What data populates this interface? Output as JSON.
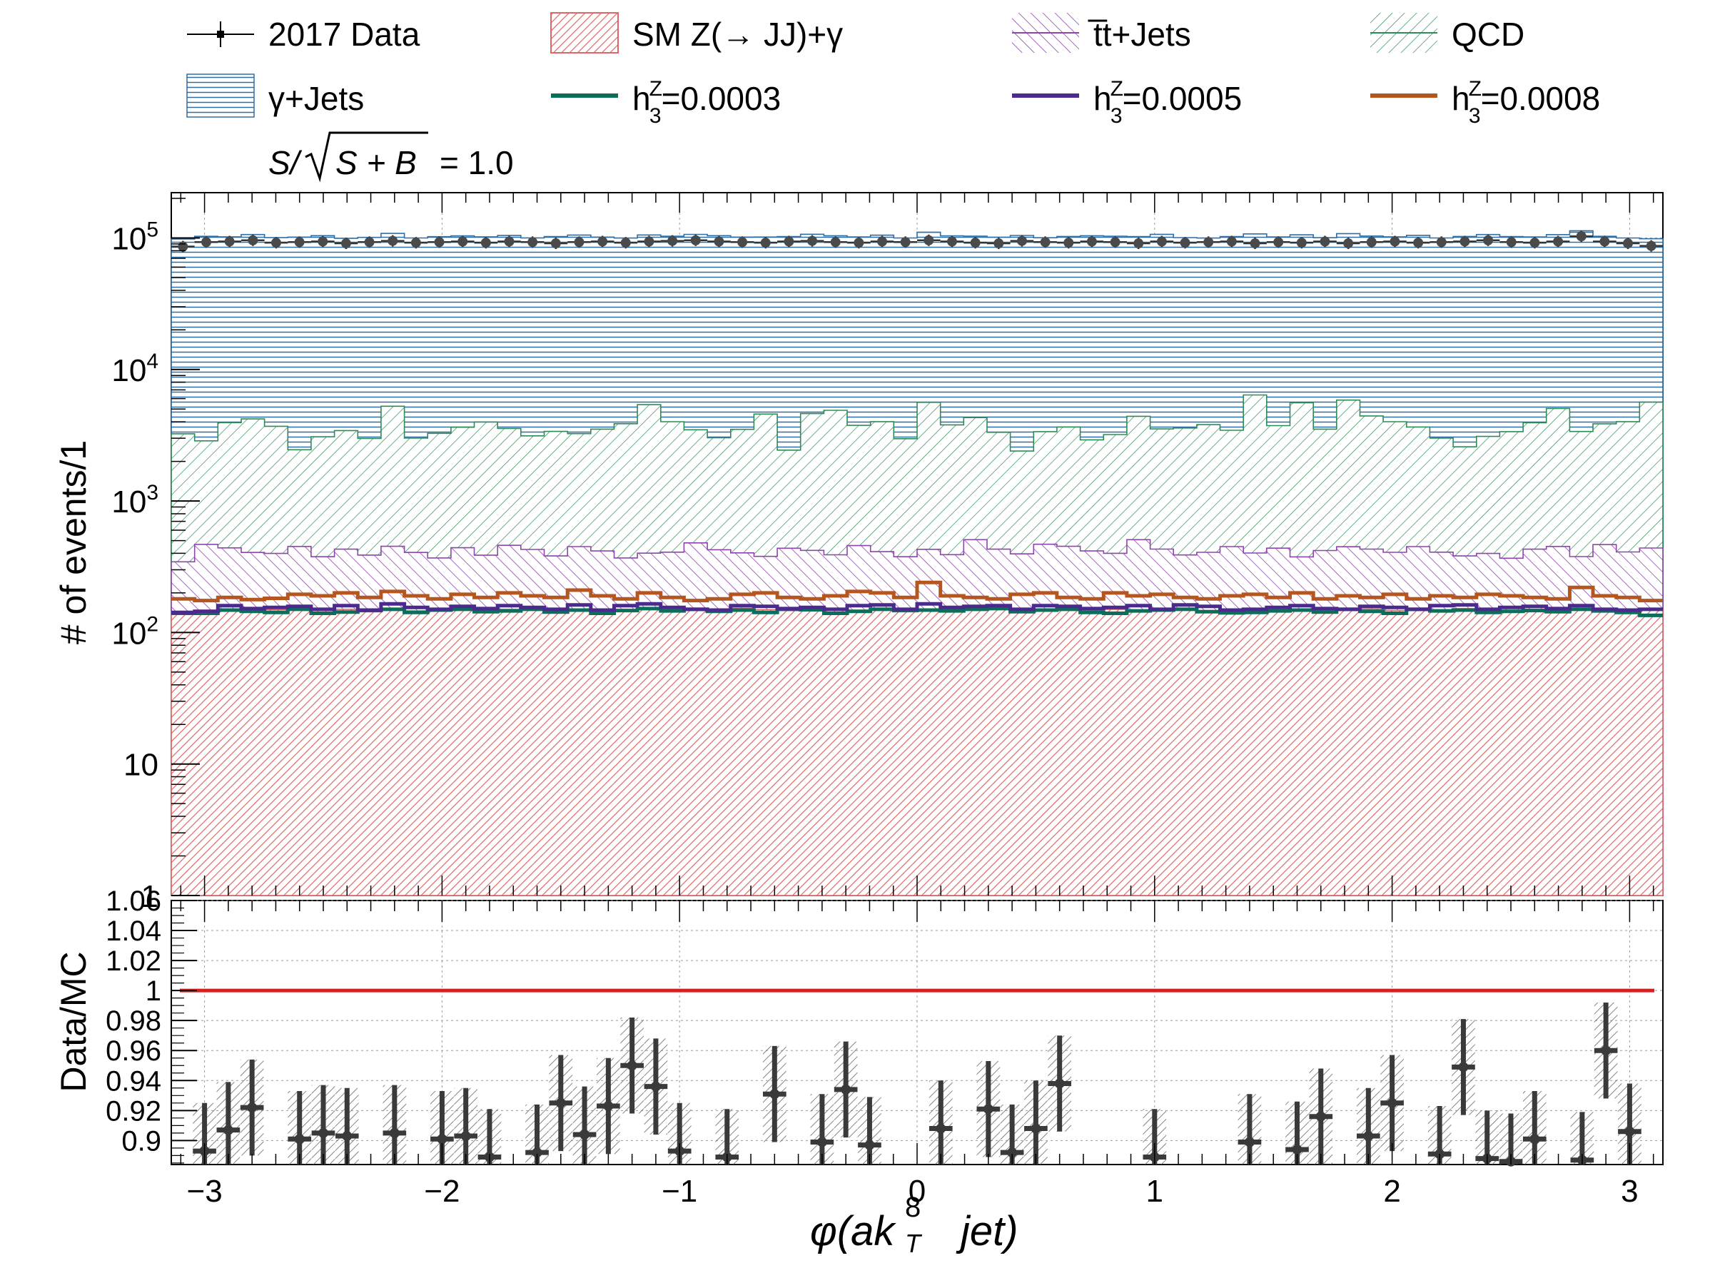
{
  "legend": {
    "entries": [
      {
        "label": "2017 Data",
        "kind": "data"
      },
      {
        "label": "SM Z(→ JJ)+γ",
        "kind": "fill",
        "color": "#e06666"
      },
      {
        "label": "t̅t+Jets",
        "kind": "fill",
        "color": "#8e44ad"
      },
      {
        "label": "QCD",
        "kind": "fill",
        "color": "#2e8b57"
      },
      {
        "label": "γ+Jets",
        "kind": "fill",
        "color": "#2f6ea5"
      },
      {
        "label": "h=0.0003",
        "kind": "line",
        "color": "#0b6e5a",
        "main": "h",
        "sup": "Z",
        "sub": "3",
        "value": "=0.0003"
      },
      {
        "label": "h=0.0005",
        "kind": "line",
        "color": "#4b2a8e",
        "main": "h",
        "sup": "Z",
        "sub": "3",
        "value": "=0.0005"
      },
      {
        "label": "h=0.0008",
        "kind": "line",
        "color": "#b5561f",
        "main": "h",
        "sup": "Z",
        "sub": "3",
        "value": "=0.0008"
      }
    ],
    "significance": "S/√S + B = 1.0",
    "significance_value": "= 1.0"
  },
  "chart_data": [
    {
      "type": "line",
      "panel": "main",
      "ylabel": "# of events/1",
      "yscale": "log",
      "ylim": [
        1,
        200000
      ],
      "xlim": [
        -3.14,
        3.14
      ],
      "y_tick_labels": [
        "1",
        "10",
        "10^2",
        "10^3",
        "10^4",
        "10^5"
      ],
      "n_bins": 64,
      "series": [
        {
          "name": "SM Z(→ JJ)+γ",
          "color": "#e06666",
          "values": [
            145,
            148,
            150,
            146,
            149,
            151,
            147,
            150,
            148,
            152,
            146,
            149,
            151,
            147,
            150,
            148,
            152,
            150,
            147,
            149,
            151,
            148,
            150,
            146,
            153,
            149,
            147,
            151,
            150,
            148,
            152,
            147,
            149,
            151,
            148,
            150,
            146,
            149,
            152,
            147,
            150,
            148,
            151,
            149,
            147,
            150,
            152,
            148,
            146,
            150,
            149,
            151,
            147,
            150,
            148,
            152,
            149,
            147,
            150,
            151,
            148,
            146,
            150,
            149
          ]
        },
        {
          "name": "t̅t+Jets",
          "color": "#8e44ad",
          "values": [
            200,
            320,
            290,
            260,
            250,
            300,
            230,
            280,
            240,
            300,
            260,
            220,
            290,
            240,
            310,
            280,
            230,
            300,
            270,
            220,
            250,
            260,
            330,
            280,
            250,
            230,
            290,
            270,
            240,
            310,
            260,
            230,
            280,
            240,
            360,
            280,
            250,
            320,
            300,
            270,
            250,
            360,
            280,
            240,
            260,
            300,
            250,
            290,
            230,
            270,
            300,
            280,
            260,
            300,
            260,
            230,
            250,
            220,
            280,
            300,
            230,
            320,
            260,
            290
          ]
        },
        {
          "name": "QCD",
          "color": "#2e8b57",
          "values": [
            2900,
            2400,
            3500,
            3800,
            3300,
            2000,
            2700,
            3000,
            2600,
            4800,
            2600,
            2900,
            3200,
            3600,
            3100,
            2700,
            3000,
            2800,
            3100,
            3500,
            5000,
            3600,
            3000,
            2600,
            3100,
            4200,
            2000,
            4200,
            4500,
            3300,
            3600,
            2600,
            5200,
            3400,
            3800,
            2900,
            2000,
            2900,
            3200,
            2500,
            2800,
            3900,
            3100,
            3200,
            3400,
            3000,
            6000,
            3300,
            5200,
            3100,
            5400,
            4000,
            3600,
            3200,
            2600,
            2200,
            2700,
            3000,
            3500,
            4600,
            3000,
            3400,
            3600,
            5200
          ]
        },
        {
          "name": "γ+Jets",
          "color": "#2f6ea5",
          "values": [
            95000,
            100000,
            98000,
            102000,
            97000,
            99000,
            101000,
            96000,
            98000,
            103000,
            97000,
            99000,
            100000,
            98000,
            101000,
            97000,
            99000,
            102000,
            98000,
            96000,
            100000,
            99000,
            103000,
            101000,
            98000,
            97000,
            100000,
            102000,
            99000,
            98000,
            101000,
            97000,
            105000,
            100000,
            99000,
            98000,
            102000,
            97000,
            99000,
            101000,
            100000,
            98000,
            103000,
            97000,
            96000,
            99000,
            101000,
            98000,
            100000,
            97000,
            102000,
            99000,
            98000,
            101000,
            97000,
            100000,
            103000,
            99000,
            98000,
            101000,
            110000,
            99000,
            96000,
            93000
          ]
        },
        {
          "name": "2017 Data",
          "color": "#444444",
          "values": [
            86000,
            93000,
            94000,
            96000,
            92000,
            93000,
            94000,
            91000,
            93000,
            95000,
            92000,
            93000,
            94000,
            92000,
            94000,
            93000,
            91000,
            93000,
            94000,
            92000,
            94000,
            95000,
            96000,
            94000,
            93000,
            92000,
            94000,
            95000,
            93000,
            92000,
            94000,
            93000,
            96000,
            94000,
            92000,
            91000,
            95000,
            93000,
            92000,
            94000,
            93000,
            91000,
            94000,
            92000,
            93000,
            94000,
            91000,
            93000,
            92000,
            94000,
            91000,
            93000,
            94000,
            92000,
            93000,
            94000,
            96000,
            93000,
            92000,
            94000,
            103000,
            94000,
            91000,
            87000
          ]
        },
        {
          "name": "h=0.0003",
          "color": "#0b6e5a",
          "values": [
            140,
            140,
            148,
            145,
            142,
            150,
            140,
            143,
            147,
            150,
            142,
            148,
            150,
            144,
            146,
            150,
            143,
            148,
            140,
            147,
            152,
            146,
            150,
            145,
            148,
            142,
            150,
            149,
            140,
            145,
            150,
            147,
            148,
            146,
            150,
            152,
            144,
            148,
            150,
            142,
            140,
            146,
            148,
            150,
            144,
            141,
            142,
            146,
            148,
            143,
            150,
            145,
            140,
            150,
            146,
            148,
            142,
            145,
            147,
            144,
            150,
            146,
            142,
            135
          ]
        },
        {
          "name": "h=0.0005",
          "color": "#4b2a8e",
          "values": [
            142,
            145,
            160,
            152,
            155,
            158,
            150,
            160,
            148,
            165,
            155,
            150,
            158,
            152,
            160,
            155,
            150,
            162,
            148,
            160,
            165,
            155,
            150,
            148,
            160,
            158,
            152,
            155,
            150,
            160,
            162,
            150,
            165,
            155,
            158,
            160,
            150,
            160,
            158,
            152,
            155,
            160,
            150,
            162,
            158,
            148,
            150,
            155,
            160,
            152,
            150,
            158,
            155,
            150,
            160,
            162,
            150,
            155,
            158,
            152,
            160,
            150,
            148,
            150
          ]
        },
        {
          "name": "h=0.0008",
          "color": "#b5561f",
          "values": [
            180,
            175,
            185,
            178,
            182,
            195,
            190,
            200,
            185,
            205,
            190,
            180,
            195,
            185,
            200,
            190,
            185,
            210,
            190,
            180,
            200,
            185,
            175,
            180,
            195,
            200,
            185,
            180,
            190,
            205,
            200,
            185,
            240,
            190,
            185,
            180,
            195,
            200,
            185,
            180,
            200,
            190,
            195,
            185,
            180,
            190,
            195,
            185,
            200,
            180,
            190,
            185,
            195,
            180,
            190,
            185,
            195,
            190,
            185,
            180,
            220,
            190,
            185,
            175
          ]
        }
      ]
    },
    {
      "type": "scatter",
      "panel": "ratio",
      "ylabel": "Data/MC",
      "xlabel": "φ(ak8T   jet)",
      "ylim": [
        0.884,
        1.06
      ],
      "xlim": [
        -3.14,
        3.14
      ],
      "x_ticks": [
        -3,
        -2,
        -1,
        0,
        1,
        2,
        3
      ],
      "x_tick_labels": [
        "−3",
        "−2",
        "−1",
        "0",
        "1",
        "2",
        "3"
      ],
      "y_ticks": [
        0.9,
        0.92,
        0.94,
        0.96,
        0.98,
        1,
        1.02,
        1.04,
        1.06
      ],
      "y_tick_labels": [
        "0.9",
        "0.92",
        "0.94",
        "0.96",
        "0.98",
        "1",
        "1.02",
        "1.04",
        "1.06"
      ],
      "reference_line": 1.0,
      "points": [
        {
          "x": -3.0,
          "y": 0.893
        },
        {
          "x": -2.9,
          "y": 0.907
        },
        {
          "x": -2.8,
          "y": 0.922
        },
        {
          "x": -2.6,
          "y": 0.901
        },
        {
          "x": -2.5,
          "y": 0.905
        },
        {
          "x": -2.4,
          "y": 0.903
        },
        {
          "x": -2.2,
          "y": 0.905
        },
        {
          "x": -2.0,
          "y": 0.901
        },
        {
          "x": -1.9,
          "y": 0.903
        },
        {
          "x": -1.8,
          "y": 0.889
        },
        {
          "x": -1.6,
          "y": 0.892
        },
        {
          "x": -1.5,
          "y": 0.925
        },
        {
          "x": -1.4,
          "y": 0.904
        },
        {
          "x": -1.3,
          "y": 0.923
        },
        {
          "x": -1.2,
          "y": 0.95
        },
        {
          "x": -1.1,
          "y": 0.936
        },
        {
          "x": -1.0,
          "y": 0.893
        },
        {
          "x": -0.8,
          "y": 0.889
        },
        {
          "x": -0.6,
          "y": 0.931
        },
        {
          "x": -0.4,
          "y": 0.899
        },
        {
          "x": -0.3,
          "y": 0.934
        },
        {
          "x": -0.2,
          "y": 0.897
        },
        {
          "x": 0.1,
          "y": 0.908
        },
        {
          "x": 0.3,
          "y": 0.921
        },
        {
          "x": 0.4,
          "y": 0.892
        },
        {
          "x": 0.5,
          "y": 0.908
        },
        {
          "x": 0.6,
          "y": 0.938
        },
        {
          "x": 1.0,
          "y": 0.889
        },
        {
          "x": 1.4,
          "y": 0.899
        },
        {
          "x": 1.6,
          "y": 0.894
        },
        {
          "x": 1.7,
          "y": 0.916
        },
        {
          "x": 1.9,
          "y": 0.903
        },
        {
          "x": 2.0,
          "y": 0.925
        },
        {
          "x": 2.2,
          "y": 0.891
        },
        {
          "x": 2.3,
          "y": 0.949
        },
        {
          "x": 2.4,
          "y": 0.888
        },
        {
          "x": 2.5,
          "y": 0.886
        },
        {
          "x": 2.6,
          "y": 0.901
        },
        {
          "x": 2.8,
          "y": 0.887
        },
        {
          "x": 2.9,
          "y": 0.96
        },
        {
          "x": 3.0,
          "y": 0.906
        }
      ]
    }
  ]
}
